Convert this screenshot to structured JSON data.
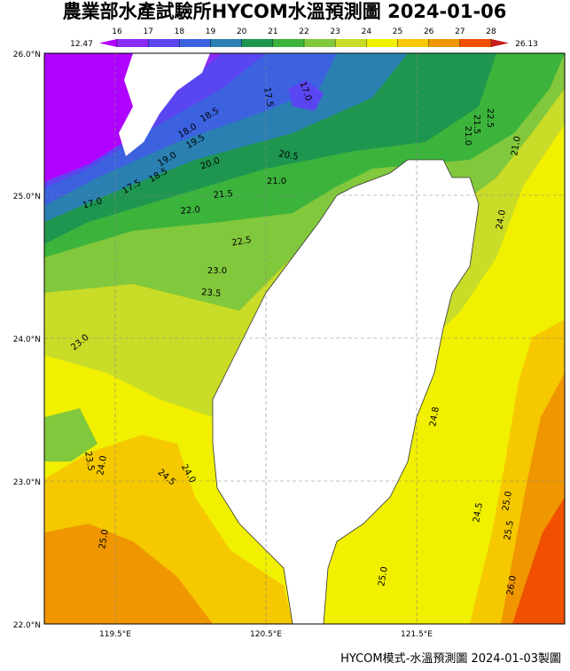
{
  "title": "農業部水產試驗所HYCOM水溫預測圖 2024-01-06",
  "colorbar": {
    "min_label": "12.47",
    "max_label": "26.13",
    "ticks": [
      16,
      17,
      18,
      19,
      20,
      21,
      22,
      23,
      24,
      25,
      26,
      27,
      28
    ],
    "colors": [
      "#b000ff",
      "#8a2cf5",
      "#5a46f0",
      "#3c62e0",
      "#2a80b0",
      "#1e9650",
      "#3cb43c",
      "#82c83c",
      "#c8dc28",
      "#f0f000",
      "#f5c800",
      "#f09600",
      "#f05000",
      "#c81e1e"
    ]
  },
  "lat_labels": [
    "26.0°N",
    "25.0°N",
    "24.0°N",
    "23.0°N",
    "22.0°N"
  ],
  "lon_labels": [
    "119.5°E",
    "120.5°E",
    "121.5°E"
  ],
  "contour_labels": [
    "17.0",
    "17.5",
    "18.5",
    "18.0",
    "19.5",
    "19.0",
    "20.0",
    "17.5",
    "18.5",
    "17.0",
    "21.5",
    "20.5",
    "21.0",
    "22.0",
    "22.5",
    "23.0",
    "23.5",
    "23.0",
    "22.5",
    "21.5",
    "21.0",
    "21.0",
    "24.0",
    "23.5",
    "24.0",
    "24.5",
    "24.0",
    "24.8",
    "25.0",
    "24.5",
    "25.0",
    "25.5",
    "25.0",
    "26.0"
  ],
  "footer": "HYCOM模式-水溫預測圖 2024-01-03製圖"
}
